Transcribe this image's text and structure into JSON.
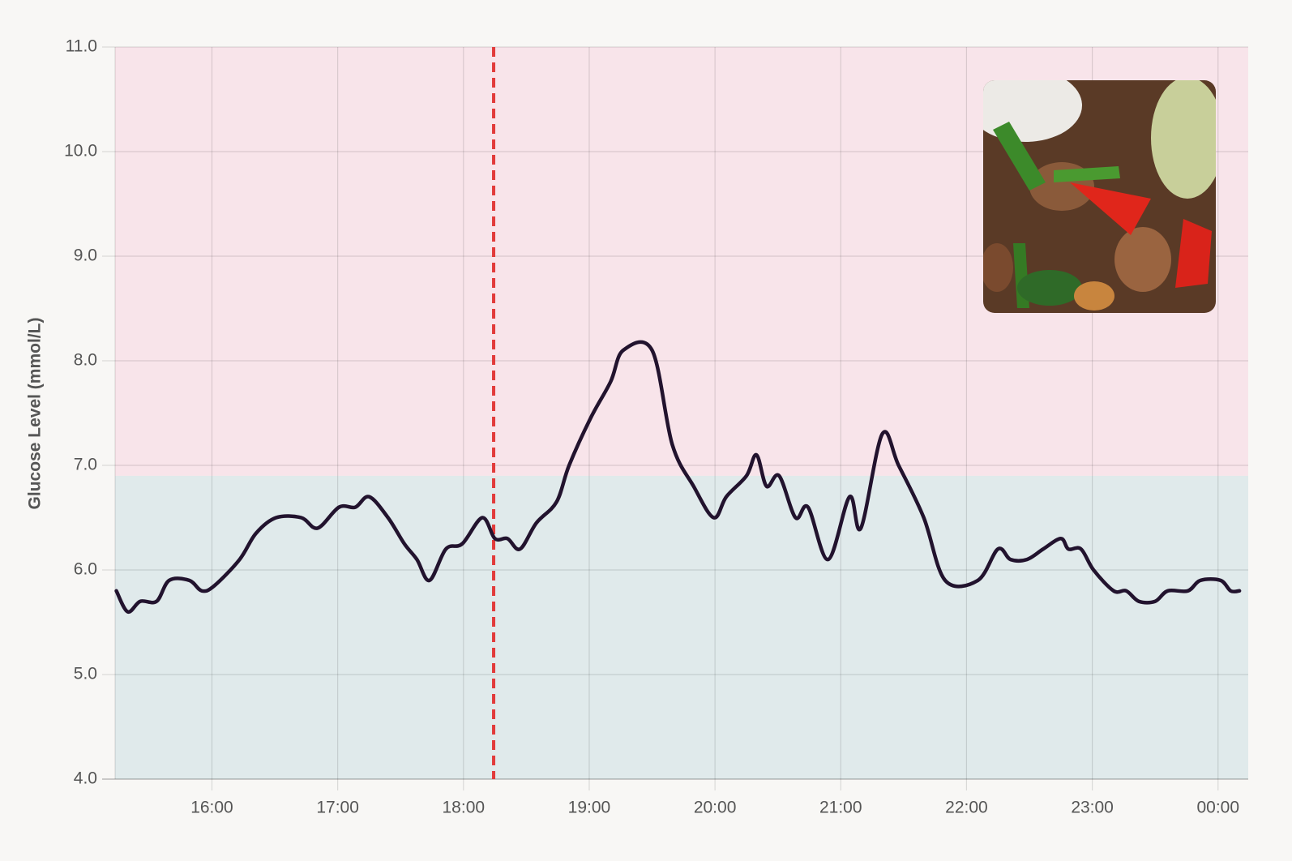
{
  "chart_data": {
    "type": "line",
    "y_label": "Glucose Level (mmol/L)",
    "xlim": [
      15.23,
      24.24
    ],
    "ylim": [
      4.0,
      11.0
    ],
    "xticks": [
      {
        "value": 16,
        "label": "16:00"
      },
      {
        "value": 17,
        "label": "17:00"
      },
      {
        "value": 18,
        "label": "18:00"
      },
      {
        "value": 19,
        "label": "19:00"
      },
      {
        "value": 20,
        "label": "20:00"
      },
      {
        "value": 21,
        "label": "21:00"
      },
      {
        "value": 22,
        "label": "22:00"
      },
      {
        "value": 23,
        "label": "23:00"
      },
      {
        "value": 24,
        "label": "00:00"
      }
    ],
    "yticks": [
      {
        "value": 4,
        "label": "4.0"
      },
      {
        "value": 5,
        "label": "5.0"
      },
      {
        "value": 6,
        "label": "6.0"
      },
      {
        "value": 7,
        "label": "7.0"
      },
      {
        "value": 8,
        "label": "8.0"
      },
      {
        "value": 9,
        "label": "9.0"
      },
      {
        "value": 10,
        "label": "10.0"
      },
      {
        "value": 11,
        "label": "11.0"
      }
    ],
    "grid": true,
    "high_threshold": 6.9,
    "high_color": "#f8e4ea",
    "normal_color": "#e0eaeb",
    "meal_time": 18.24,
    "meal_color": "#e23b3b",
    "series": [
      {
        "color": "#22132e",
        "x": [
          15.24,
          15.33,
          15.43,
          15.56,
          15.66,
          15.82,
          15.92,
          16.02,
          16.22,
          16.35,
          16.51,
          16.71,
          16.84,
          17.01,
          17.14,
          17.25,
          17.4,
          17.53,
          17.63,
          17.73,
          17.86,
          17.99,
          18.15,
          18.25,
          18.35,
          18.45,
          18.58,
          18.74,
          18.84,
          19.01,
          19.17,
          19.27,
          19.5,
          19.66,
          19.83,
          19.99,
          20.09,
          20.25,
          20.33,
          20.41,
          20.51,
          20.64,
          20.74,
          20.9,
          21.07,
          21.16,
          21.33,
          21.46,
          21.66,
          21.83,
          22.09,
          22.25,
          22.35,
          22.48,
          22.61,
          22.75,
          22.81,
          22.91,
          23.01,
          23.17,
          23.27,
          23.37,
          23.5,
          23.6,
          23.76,
          23.86,
          24.02,
          24.1,
          24.17
        ],
        "values": [
          5.8,
          5.6,
          5.7,
          5.7,
          5.9,
          5.9,
          5.8,
          5.85,
          6.1,
          6.35,
          6.5,
          6.5,
          6.4,
          6.6,
          6.6,
          6.7,
          6.5,
          6.25,
          6.1,
          5.9,
          6.2,
          6.25,
          6.5,
          6.3,
          6.3,
          6.2,
          6.45,
          6.65,
          7.0,
          7.45,
          7.8,
          8.1,
          8.1,
          7.2,
          6.8,
          6.5,
          6.7,
          6.9,
          7.1,
          6.8,
          6.9,
          6.5,
          6.6,
          6.1,
          6.7,
          6.4,
          7.3,
          7.0,
          6.5,
          5.9,
          5.9,
          6.2,
          6.1,
          6.1,
          6.2,
          6.3,
          6.2,
          6.2,
          6.0,
          5.8,
          5.8,
          5.7,
          5.7,
          5.8,
          5.8,
          5.9,
          5.9,
          5.8,
          5.8
        ]
      }
    ]
  }
}
